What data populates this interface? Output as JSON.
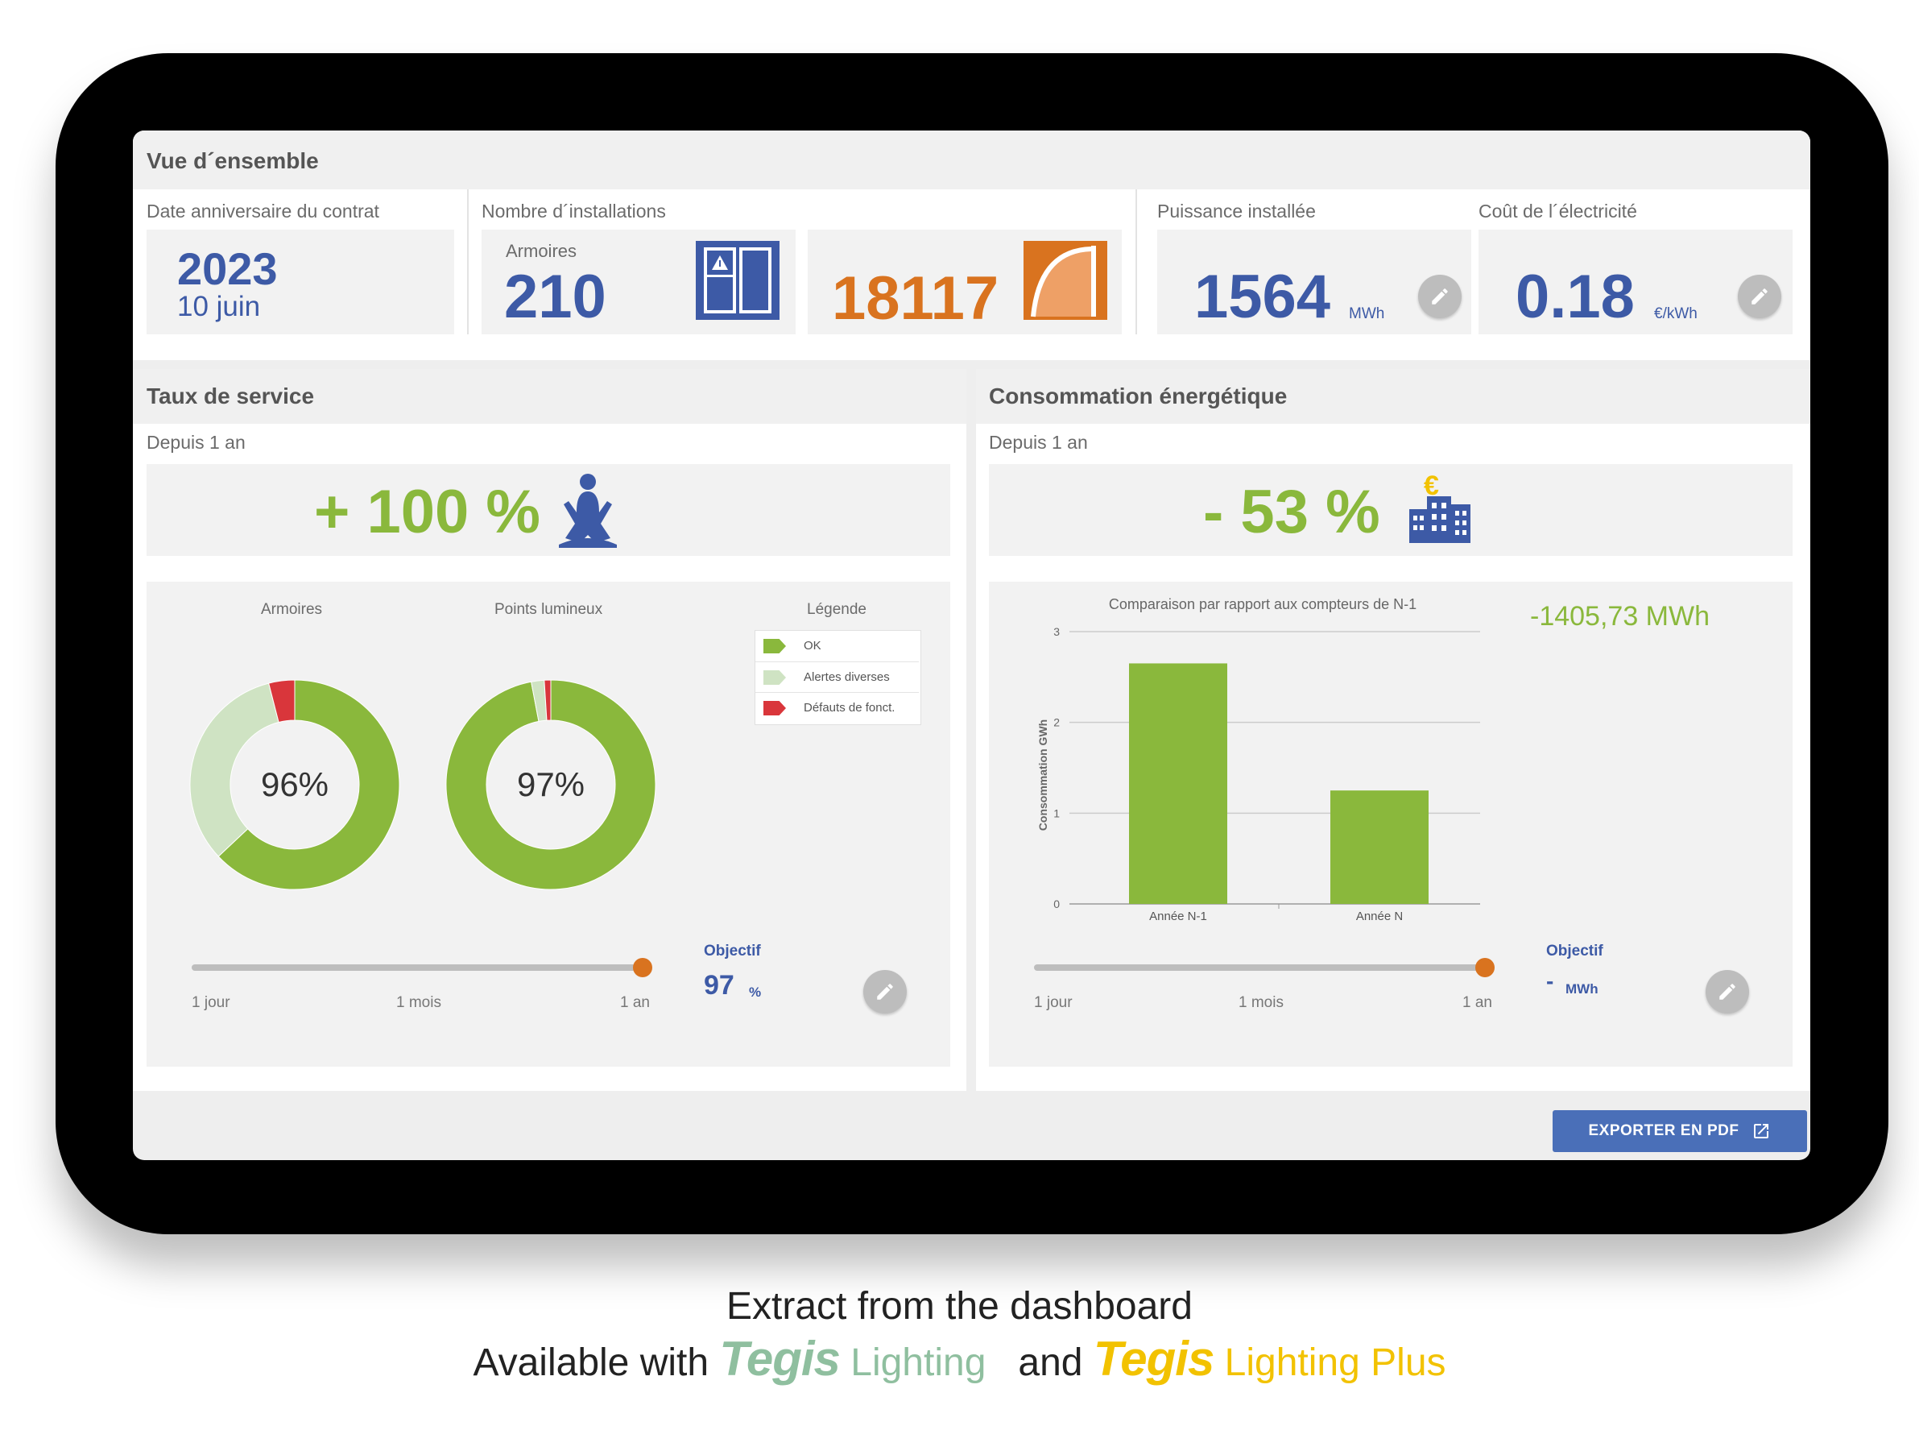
{
  "overview": {
    "title": "Vue d´ensemble",
    "contract": {
      "label": "Date anniversaire du contrat",
      "year": "2023",
      "date": "10 juin"
    },
    "installations": {
      "label": "Nombre d´installations",
      "cabinets_label": "Armoires",
      "cabinets_value": "210",
      "points_value": "18117"
    },
    "power": {
      "label": "Puissance installée",
      "value": "1564",
      "unit": "MWh"
    },
    "cost": {
      "label": "Coût de l´électricité",
      "value": "0.18",
      "unit": "€/kWh"
    }
  },
  "service": {
    "title": "Taux de service",
    "period": "Depuis 1 an",
    "kpi": "+ 100 %",
    "donut1": {
      "title": "Armoires",
      "value_label": "96%",
      "ok": 0.63,
      "alerts": 0.33,
      "faults": 0.04
    },
    "donut2": {
      "title": "Points lumineux",
      "value_label": "97%",
      "ok": 0.97,
      "alerts": 0.02,
      "faults": 0.01
    },
    "legend": {
      "title": "Légende",
      "items": [
        "OK",
        "Alertes diverses",
        "Défauts de fonct."
      ]
    },
    "slider": {
      "ticks": [
        "1 jour",
        "1 mois",
        "1 an"
      ],
      "position": 1.0
    },
    "objective": {
      "label": "Objectif",
      "value": "97",
      "unit": "%"
    }
  },
  "energy": {
    "title": "Consommation énergétique",
    "period": "Depuis 1 an",
    "kpi": "- 53 %",
    "delta": "-1405,73 MWh",
    "slider": {
      "ticks": [
        "1 jour",
        "1 mois",
        "1 an"
      ],
      "position": 1.0
    },
    "objective": {
      "label": "Objectif",
      "value": "-",
      "unit": "MWh"
    }
  },
  "chart_data": {
    "type": "bar",
    "title": "Comparaison par rapport aux compteurs de N-1",
    "categories": [
      "Année N-1",
      "Année N"
    ],
    "values": [
      2.65,
      1.25
    ],
    "ylabel": "Consommation GWh",
    "xlabel": "",
    "ylim": [
      0,
      3
    ],
    "yticks": [
      "0",
      "1",
      "2",
      "3"
    ],
    "grid": true
  },
  "export_button": "EXPORTER EN PDF",
  "caption": {
    "line1": "Extract from the dashboard",
    "prefix": "Available with",
    "brand1": "Tegis",
    "product1": "Lighting",
    "joiner": "and",
    "brand2": "Tegis",
    "product2": "Lighting Plus"
  },
  "colors": {
    "blue": "#3d5aa6",
    "green": "#8ab83c",
    "light_green": "#cfe3c3",
    "red": "#d9363b",
    "orange": "#d9731f",
    "brand_green": "#8fbf9f",
    "brand_yellow": "#f2c200"
  }
}
